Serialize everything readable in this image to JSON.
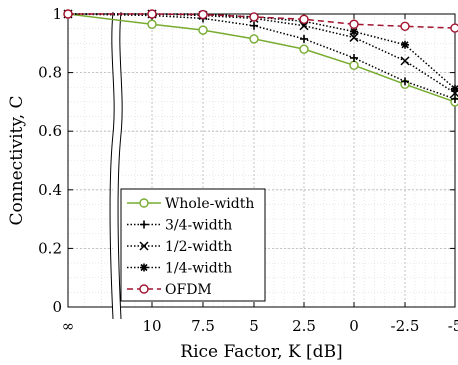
{
  "chart_data": {
    "type": "line",
    "xlabel": "Rice Factor, K [dB]",
    "ylabel": "Connectivity, C",
    "x_tick_labels": [
      "∞",
      "10",
      "7.5",
      "5",
      "2.5",
      "0",
      "-2.5",
      "-5"
    ],
    "y_tick_labels": [
      "0",
      "0.2",
      "0.4",
      "0.6",
      "0.8",
      "1"
    ],
    "ylim": [
      0,
      1
    ],
    "grid": true,
    "minor_grid": true,
    "axis_break": "between ∞ and 10",
    "legend_position": "bottom-left",
    "series": [
      {
        "name": "Whole-width",
        "color": "#77AC30",
        "linestyle": "solid",
        "marker": "circle",
        "x": [
          "∞",
          "10",
          "7.5",
          "5",
          "2.5",
          "0",
          "-2.5",
          "-5"
        ],
        "values": [
          1.0,
          0.965,
          0.945,
          0.915,
          0.88,
          0.825,
          0.76,
          0.7
        ]
      },
      {
        "name": "3/4-width",
        "color": "#000000",
        "linestyle": "dotted",
        "marker": "plus",
        "x": [
          "∞",
          "10",
          "7.5",
          "5",
          "2.5",
          "0",
          "-2.5",
          "-5"
        ],
        "values": [
          1.0,
          0.995,
          0.985,
          0.96,
          0.915,
          0.85,
          0.77,
          0.71
        ]
      },
      {
        "name": "1/2-width",
        "color": "#000000",
        "linestyle": "dotted",
        "marker": "x",
        "x": [
          "∞",
          "10",
          "7.5",
          "5",
          "2.5",
          "0",
          "-2.5",
          "-5"
        ],
        "values": [
          1.0,
          1.0,
          0.995,
          0.985,
          0.96,
          0.92,
          0.84,
          0.73
        ]
      },
      {
        "name": "1/4-width",
        "color": "#000000",
        "linestyle": "dotted",
        "marker": "star",
        "x": [
          "∞",
          "10",
          "7.5",
          "5",
          "2.5",
          "0",
          "-2.5",
          "-5"
        ],
        "values": [
          1.0,
          1.0,
          1.0,
          0.99,
          0.975,
          0.94,
          0.895,
          0.745
        ]
      },
      {
        "name": "OFDM",
        "color": "#A2142F",
        "linestyle": "dashed",
        "marker": "circle",
        "x": [
          "∞",
          "10",
          "7.5",
          "5",
          "2.5",
          "0",
          "-2.5",
          "-5"
        ],
        "values": [
          1.0,
          1.0,
          0.998,
          0.99,
          0.982,
          0.965,
          0.958,
          0.952
        ]
      }
    ]
  }
}
